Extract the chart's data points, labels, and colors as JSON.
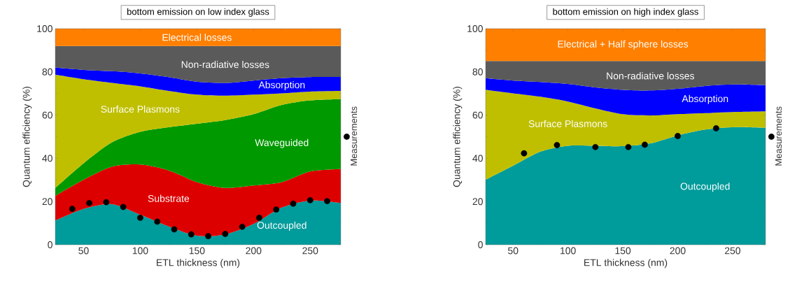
{
  "chart_data": [
    {
      "type": "area",
      "stacked": true,
      "title": "bottom emission on low index glass",
      "xlabel": "ETL thickness (nm)",
      "ylabel": "Quantum efficiency (%)",
      "x": [
        25,
        50,
        75,
        100,
        125,
        150,
        175,
        200,
        225,
        250,
        277
      ],
      "xlim": [
        25,
        277
      ],
      "xticks": [
        50,
        100,
        150,
        200,
        250
      ],
      "ylim": [
        0,
        100
      ],
      "yticks": [
        0,
        20,
        40,
        60,
        80,
        100
      ],
      "legend": "right",
      "series": [
        {
          "name": "Outcoupled",
          "color": "#009b9b",
          "values": [
            11.2,
            16.6,
            18.8,
            13.9,
            8.5,
            4.2,
            4.8,
            9.6,
            17.2,
            20.4,
            19.3
          ]
        },
        {
          "name": "Substrate",
          "color": "#dd0000",
          "values": [
            11.4,
            13.5,
            17.3,
            23.2,
            25.9,
            24.8,
            21.5,
            17.8,
            11.8,
            13.5,
            15.7
          ]
        },
        {
          "name": "Waveguided",
          "color": "#009900",
          "values": [
            3.7,
            7.6,
            11.3,
            15.2,
            20.0,
            27.0,
            31.4,
            33.0,
            35.7,
            32.9,
            32.4
          ]
        },
        {
          "name": "Surface Plasmons",
          "color": "#bfbf00",
          "values": [
            52.4,
            38.9,
            27.5,
            21.0,
            16.8,
            13.5,
            11.3,
            9.1,
            5.4,
            4.1,
            3.8
          ]
        },
        {
          "name": "Absorption",
          "color": "#0000ff",
          "values": [
            3.3,
            4.3,
            5.4,
            6.0,
            6.4,
            6.0,
            5.9,
            6.5,
            7.0,
            6.7,
            6.4
          ]
        },
        {
          "name": "Non-radiative losses",
          "color": "#5a5a5a",
          "values": [
            10.0,
            11.1,
            11.7,
            12.7,
            14.4,
            16.5,
            17.1,
            16.0,
            14.9,
            14.4,
            14.4
          ]
        },
        {
          "name": "Electrical losses",
          "color": "#ff7f00",
          "values": [
            8,
            8,
            8,
            8,
            8,
            8,
            8,
            8,
            8,
            8,
            8
          ]
        },
        {
          "name": "Measurements",
          "type": "scatter",
          "color": "#000000",
          "x": [
            40,
            55,
            70,
            85,
            100,
            115,
            130,
            145,
            160,
            175,
            190,
            205,
            220,
            235,
            250,
            265
          ],
          "values": [
            16.6,
            19.3,
            19.7,
            17.5,
            12.5,
            10.7,
            7.1,
            4.8,
            4.0,
            5.0,
            8.3,
            12.5,
            16.3,
            19.0,
            20.6,
            20.2
          ]
        }
      ]
    },
    {
      "type": "area",
      "stacked": true,
      "title": "bottom emission on high index glass",
      "xlabel": "ETL thickness (nm)",
      "ylabel": "Quantum efficiency (%)",
      "x": [
        25,
        50,
        75,
        100,
        125,
        150,
        175,
        200,
        225,
        250,
        280
      ],
      "xlim": [
        25,
        280
      ],
      "xticks": [
        50,
        100,
        150,
        200,
        250
      ],
      "ylim": [
        0,
        100
      ],
      "yticks": [
        0,
        20,
        40,
        60,
        80,
        100
      ],
      "legend": "right",
      "series": [
        {
          "name": "Outcoupled",
          "color": "#009b9b",
          "values": [
            30.1,
            36.6,
            43.1,
            45.8,
            45.8,
            45.6,
            46.9,
            50.6,
            53.3,
            54.4,
            54.1
          ]
        },
        {
          "name": "Surface Plasmons",
          "color": "#bfbf00",
          "values": [
            41.6,
            33.5,
            25.4,
            20.5,
            17.3,
            14.8,
            12.9,
            9.8,
            7.6,
            7.0,
            7.6
          ]
        },
        {
          "name": "Absorption",
          "color": "#0000ff",
          "values": [
            5.4,
            5.9,
            6.8,
            8.1,
            9.7,
            11.3,
            11.6,
            11.8,
            12.6,
            12.8,
            12.2
          ]
        },
        {
          "name": "Non-radiative losses",
          "color": "#5a5a5a",
          "values": [
            7.9,
            9.0,
            9.7,
            10.6,
            12.2,
            13.3,
            13.6,
            12.8,
            11.5,
            10.8,
            11.1
          ]
        },
        {
          "name": "Electrical + Half sphere losses",
          "color": "#ff7f00",
          "values": [
            15,
            15,
            15,
            15,
            15,
            15,
            15,
            15,
            15,
            15,
            15
          ]
        },
        {
          "name": "Measurements",
          "type": "scatter",
          "color": "#000000",
          "x": [
            60,
            90,
            125,
            155,
            170,
            200,
            235
          ],
          "values": [
            42.3,
            46.1,
            45.2,
            45.2,
            46.3,
            50.3,
            53.9
          ]
        }
      ]
    }
  ]
}
